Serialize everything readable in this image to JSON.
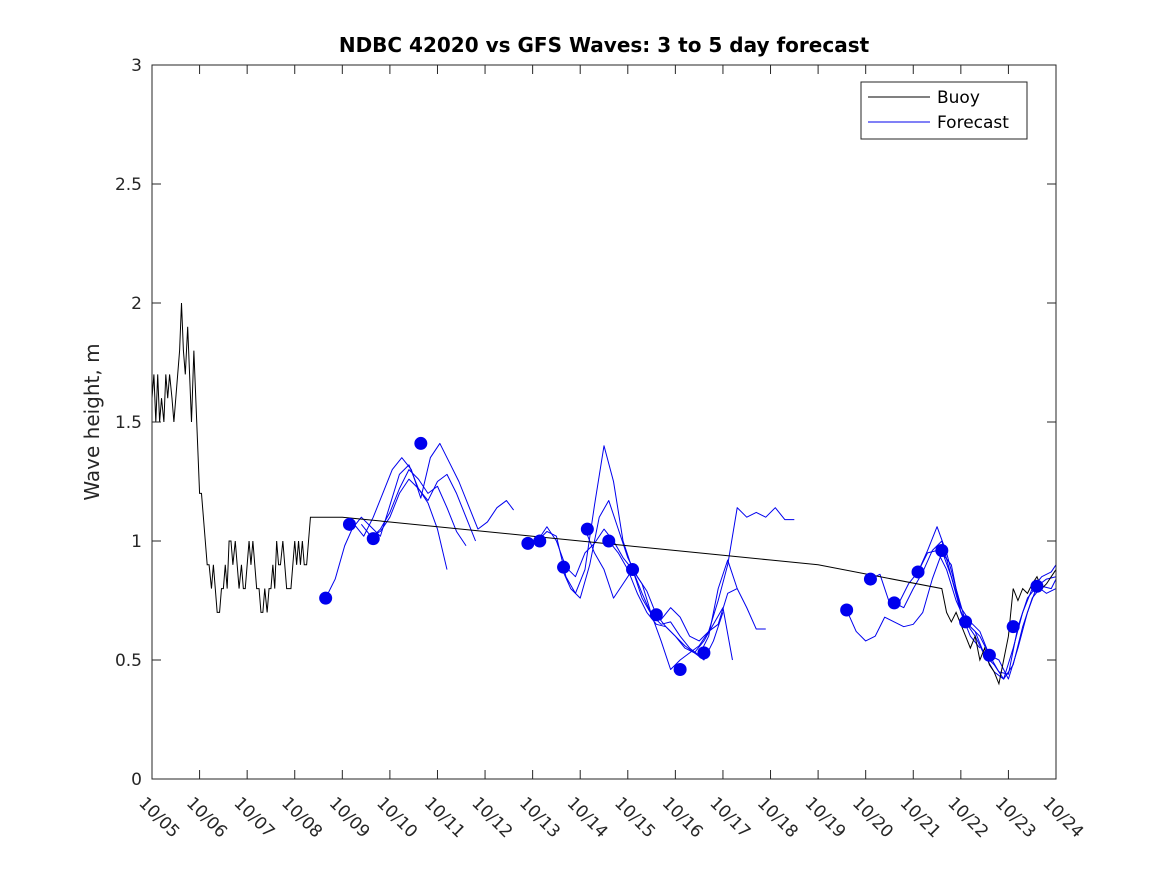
{
  "chart_data": {
    "type": "line",
    "title": "NDBC 42020 vs GFS Waves: 3 to 5 day forecast",
    "xlabel": "",
    "ylabel": "Wave height, m",
    "xlim": [
      0,
      19
    ],
    "ylim": [
      0,
      3
    ],
    "x_tick_values": [
      0,
      1,
      2,
      3,
      4,
      5,
      6,
      7,
      8,
      9,
      10,
      11,
      12,
      13,
      14,
      15,
      16,
      17,
      18,
      19
    ],
    "x_tick_labels": [
      "10/05",
      "10/06",
      "10/07",
      "10/08",
      "10/09",
      "10/10",
      "10/11",
      "10/12",
      "10/13",
      "10/14",
      "10/15",
      "10/16",
      "10/17",
      "10/18",
      "10/19",
      "10/20",
      "10/21",
      "10/22",
      "10/23",
      "10/24"
    ],
    "y_tick_values": [
      0,
      0.5,
      1,
      1.5,
      2,
      2.5,
      3
    ],
    "y_tick_labels": [
      "0",
      "0.5",
      "1",
      "1.5",
      "2",
      "2.5",
      "3"
    ],
    "grid": false,
    "legend": {
      "location": "top-right",
      "entries": [
        "Buoy",
        "Forecast"
      ]
    },
    "colors": {
      "buoy": "#000000",
      "forecast": "#0000ee",
      "axis": "#262626",
      "background": "#ffffff"
    },
    "series": [
      {
        "name": "Buoy",
        "x": [
          0.0,
          0.04,
          0.08,
          0.12,
          0.16,
          0.2,
          0.25,
          0.29,
          0.33,
          0.37,
          0.42,
          0.46,
          0.5,
          0.54,
          0.58,
          0.62,
          0.66,
          0.7,
          0.75,
          0.79,
          0.83,
          0.88,
          0.92,
          0.96,
          1.0,
          1.04,
          1.08,
          1.12,
          1.16,
          1.2,
          1.25,
          1.29,
          1.33,
          1.37,
          1.42,
          1.46,
          1.5,
          1.54,
          1.58,
          1.62,
          1.66,
          1.7,
          1.75,
          1.79,
          1.83,
          1.88,
          1.92,
          1.96,
          2.0,
          2.04,
          2.08,
          2.12,
          2.16,
          2.2,
          2.25,
          2.29,
          2.33,
          2.37,
          2.42,
          2.46,
          2.5,
          2.54,
          2.58,
          2.62,
          2.66,
          2.7,
          2.75,
          2.79,
          2.83,
          2.88,
          2.92,
          2.96,
          3.0,
          3.04,
          3.08,
          3.12,
          3.16,
          3.2,
          3.25,
          3.29,
          3.33,
          3.4,
          3.7,
          4.0,
          5.0,
          6.0,
          7.0,
          8.0,
          9.0,
          10.0,
          11.0,
          12.0,
          13.0,
          14.0,
          16.6,
          16.7,
          16.8,
          16.9,
          17.0,
          17.1,
          17.2,
          17.3,
          17.4,
          17.5,
          17.6,
          17.7,
          17.8,
          17.9,
          18.0,
          18.1,
          18.2,
          18.3,
          18.4,
          18.5,
          18.6,
          18.7,
          18.8,
          18.9,
          19.0
        ],
        "y": [
          1.6,
          1.7,
          1.5,
          1.7,
          1.5,
          1.6,
          1.5,
          1.7,
          1.6,
          1.7,
          1.6,
          1.5,
          1.6,
          1.7,
          1.8,
          2.0,
          1.8,
          1.7,
          1.9,
          1.7,
          1.5,
          1.8,
          1.6,
          1.4,
          1.2,
          1.2,
          1.1,
          1.0,
          0.9,
          0.9,
          0.8,
          0.9,
          0.8,
          0.7,
          0.7,
          0.8,
          0.8,
          0.9,
          0.8,
          1.0,
          1.0,
          0.9,
          1.0,
          0.9,
          0.8,
          0.9,
          0.8,
          0.8,
          0.9,
          1.0,
          0.9,
          1.0,
          0.9,
          0.8,
          0.8,
          0.7,
          0.7,
          0.8,
          0.7,
          0.8,
          0.8,
          0.9,
          0.8,
          1.0,
          0.9,
          0.9,
          1.0,
          0.9,
          0.8,
          0.8,
          0.8,
          0.9,
          1.0,
          0.9,
          1.0,
          0.9,
          1.0,
          0.9,
          0.9,
          1.0,
          1.1,
          1.1,
          1.1,
          1.1,
          1.08,
          1.06,
          1.04,
          1.02,
          1.0,
          0.98,
          0.96,
          0.94,
          0.92,
          0.9,
          0.8,
          0.7,
          0.66,
          0.7,
          0.65,
          0.6,
          0.55,
          0.6,
          0.5,
          0.55,
          0.48,
          0.45,
          0.4,
          0.5,
          0.6,
          0.8,
          0.75,
          0.8,
          0.78,
          0.82,
          0.85,
          0.8,
          0.82,
          0.85,
          0.88
        ]
      },
      {
        "name": "Forecast",
        "segments": [
          {
            "x": [
              3.65,
              3.85,
              4.05,
              4.25,
              4.45,
              4.65,
              4.85,
              5.05,
              5.25,
              5.45,
              5.65,
              5.85,
              6.05,
              6.25,
              6.45,
              6.65,
              6.85,
              7.05,
              7.25,
              7.45,
              7.6
            ],
            "y": [
              0.76,
              0.84,
              0.98,
              1.07,
              1.02,
              1.1,
              1.2,
              1.3,
              1.35,
              1.3,
              1.18,
              1.35,
              1.41,
              1.33,
              1.25,
              1.15,
              1.05,
              1.08,
              1.14,
              1.17,
              1.13
            ]
          },
          {
            "x": [
              4.2,
              4.4,
              4.6,
              4.8,
              5.0,
              5.2,
              5.4,
              5.6,
              5.8,
              6.0,
              6.2,
              6.4,
              6.6,
              6.8
            ],
            "y": [
              1.05,
              1.1,
              1.06,
              1.02,
              1.15,
              1.28,
              1.32,
              1.22,
              1.17,
              1.25,
              1.28,
              1.2,
              1.1,
              1.0
            ]
          },
          {
            "x": [
              4.6,
              4.8,
              5.0,
              5.2,
              5.4,
              5.6,
              5.8,
              6.0,
              6.2,
              6.4,
              6.6
            ],
            "y": [
              1.01,
              1.05,
              1.12,
              1.22,
              1.3,
              1.26,
              1.2,
              1.23,
              1.14,
              1.04,
              0.98
            ]
          },
          {
            "x": [
              4.4,
              4.6,
              4.8,
              5.0,
              5.2,
              5.4,
              5.6,
              5.8,
              6.0,
              6.2
            ],
            "y": [
              1.07,
              1.02,
              1.04,
              1.1,
              1.2,
              1.26,
              1.22,
              1.16,
              1.05,
              0.88
            ]
          },
          {
            "x": [
              7.9,
              8.1,
              8.3,
              8.5,
              8.7,
              8.9,
              9.1,
              9.3,
              9.5,
              9.7,
              9.9,
              10.1,
              10.3,
              10.5,
              10.7,
              10.9,
              11.1,
              11.3,
              11.5,
              11.7,
              11.9,
              12.1,
              12.3,
              12.5,
              12.7,
              12.9,
              13.1,
              13.3,
              13.5
            ],
            "y": [
              0.99,
              1.0,
              1.06,
              1.0,
              0.89,
              0.85,
              0.95,
              0.99,
              1.05,
              1.0,
              0.93,
              0.88,
              0.82,
              0.69,
              0.67,
              0.72,
              0.68,
              0.6,
              0.58,
              0.62,
              0.75,
              0.9,
              1.14,
              1.1,
              1.12,
              1.1,
              1.14,
              1.09,
              1.09
            ]
          },
          {
            "x": [
              8.1,
              8.3,
              8.5,
              8.7,
              8.9,
              9.1,
              9.3,
              9.5,
              9.7,
              9.9,
              10.1,
              10.3,
              10.5,
              10.7,
              10.9,
              11.1,
              11.3,
              11.5,
              11.7,
              11.9,
              12.1,
              12.3
            ],
            "y": [
              1.0,
              1.04,
              1.02,
              0.85,
              0.78,
              0.88,
              1.15,
              1.4,
              1.25,
              1.0,
              0.88,
              0.78,
              0.69,
              0.65,
              0.66,
              0.6,
              0.55,
              0.52,
              0.6,
              0.8,
              0.92,
              0.8
            ]
          },
          {
            "x": [
              8.6,
              8.8,
              9.0,
              9.2,
              9.4,
              9.6,
              9.8,
              10.0,
              10.2,
              10.4,
              10.6,
              10.8,
              11.0,
              11.2,
              11.4,
              11.6,
              11.8,
              12.0,
              12.2
            ],
            "y": [
              0.89,
              0.8,
              0.76,
              0.9,
              1.1,
              1.17,
              1.05,
              0.93,
              0.85,
              0.79,
              0.69,
              0.64,
              0.6,
              0.56,
              0.53,
              0.58,
              0.65,
              0.72,
              0.5
            ]
          },
          {
            "x": [
              9.1,
              9.3,
              9.5,
              9.7,
              9.9,
              10.1,
              10.3,
              10.5,
              10.7,
              10.9,
              11.1,
              11.3,
              11.5,
              11.7,
              11.9,
              12.1,
              12.3,
              12.5,
              12.7,
              12.9
            ],
            "y": [
              1.05,
              0.95,
              0.88,
              0.76,
              0.82,
              0.88,
              0.76,
              0.69,
              0.58,
              0.46,
              0.5,
              0.53,
              0.56,
              0.62,
              0.65,
              0.78,
              0.8,
              0.72,
              0.63,
              0.63
            ]
          },
          {
            "x": [
              9.6,
              9.8,
              10.0,
              10.2,
              10.4,
              10.6,
              10.8,
              11.0,
              11.2,
              11.4,
              11.6,
              11.8,
              12.0
            ],
            "y": [
              1.0,
              0.95,
              0.88,
              0.78,
              0.7,
              0.65,
              0.64,
              0.6,
              0.55,
              0.53,
              0.5,
              0.58,
              0.7
            ]
          },
          {
            "x": [
              14.6,
              14.8,
              15.0,
              15.2,
              15.4,
              15.6,
              15.8,
              16.0,
              16.2,
              16.4,
              16.6,
              16.8,
              17.0,
              17.2,
              17.4
            ],
            "y": [
              0.71,
              0.62,
              0.58,
              0.6,
              0.68,
              0.66,
              0.64,
              0.65,
              0.7,
              0.84,
              0.95,
              0.9,
              0.7,
              0.6,
              0.55
            ]
          },
          {
            "x": [
              15.1,
              15.3,
              15.5,
              15.7,
              15.9,
              16.1,
              16.3,
              16.5,
              16.7,
              16.9,
              17.1,
              17.3,
              17.5,
              17.7,
              17.9,
              18.1,
              18.3,
              18.5,
              18.7,
              18.9,
              19.0
            ],
            "y": [
              0.84,
              0.86,
              0.74,
              0.74,
              0.82,
              0.87,
              0.96,
              1.06,
              0.95,
              0.8,
              0.66,
              0.6,
              0.52,
              0.45,
              0.42,
              0.55,
              0.7,
              0.8,
              0.85,
              0.87,
              0.9
            ]
          },
          {
            "x": [
              15.6,
              15.8,
              16.0,
              16.2,
              16.4,
              16.6,
              16.8,
              17.0,
              17.2,
              17.4,
              17.6,
              17.8,
              18.0,
              18.2,
              18.4,
              18.6,
              18.8,
              19.0
            ],
            "y": [
              0.74,
              0.72,
              0.8,
              0.87,
              0.96,
              1.0,
              0.85,
              0.7,
              0.64,
              0.6,
              0.52,
              0.5,
              0.42,
              0.55,
              0.7,
              0.81,
              0.84,
              0.85
            ]
          },
          {
            "x": [
              16.1,
              16.3,
              16.5,
              16.7,
              16.9,
              17.1,
              17.3,
              17.5,
              17.7,
              17.9,
              18.1,
              18.3,
              18.5,
              18.7,
              18.9,
              19.0
            ],
            "y": [
              0.87,
              0.95,
              0.96,
              0.88,
              0.75,
              0.66,
              0.62,
              0.52,
              0.48,
              0.42,
              0.48,
              0.64,
              0.76,
              0.81,
              0.8,
              0.84
            ]
          },
          {
            "x": [
              16.6,
              16.8,
              17.0,
              17.2,
              17.4,
              17.6,
              17.8,
              18.0,
              18.2,
              18.4,
              18.6,
              18.8,
              19.0
            ],
            "y": [
              0.96,
              0.85,
              0.72,
              0.66,
              0.62,
              0.52,
              0.45,
              0.44,
              0.64,
              0.76,
              0.81,
              0.78,
              0.8
            ]
          }
        ],
        "markers": {
          "x": [
            3.65,
            4.15,
            4.65,
            5.65,
            7.9,
            8.15,
            8.65,
            9.15,
            9.6,
            10.1,
            10.6,
            11.1,
            11.6,
            14.6,
            15.1,
            15.6,
            16.1,
            16.6,
            17.1,
            17.6,
            18.1,
            18.6
          ],
          "y": [
            0.76,
            1.07,
            1.01,
            1.41,
            0.99,
            1.0,
            0.89,
            1.05,
            1.0,
            0.88,
            0.69,
            0.46,
            0.53,
            0.71,
            0.84,
            0.74,
            0.87,
            0.96,
            0.66,
            0.52,
            0.64,
            0.81
          ]
        }
      }
    ]
  }
}
